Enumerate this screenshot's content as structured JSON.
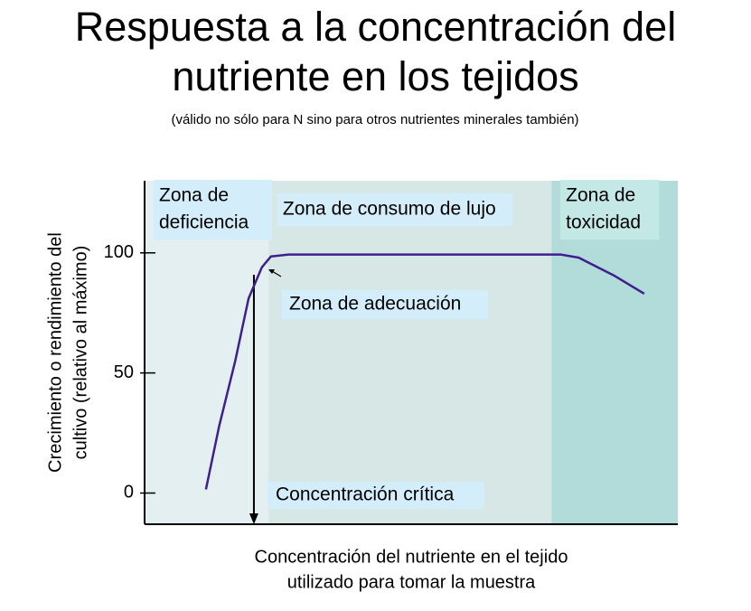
{
  "chart_data": {
    "type": "line",
    "title": "Respuesta a la concentración del nutriente en los tejidos",
    "subtitle": "(válido no sólo para N sino para otros nutrientes minerales también)",
    "y_label": [
      "Crecimiento o rendimiento del",
      "cultivo (relativo al máximo)"
    ],
    "x_label": [
      "Concentración del nutriente en el tejido",
      "utilizado para tomar la muestra"
    ],
    "xlim": [
      0,
      100
    ],
    "ylim": [
      -13,
      130
    ],
    "yticks": [
      0,
      50,
      100
    ],
    "color": "#3f1f8c",
    "x": [
      11.5,
      14,
      17,
      19.5,
      22,
      23.7,
      27,
      78,
      81.4,
      88,
      93.7
    ],
    "values": [
      1.5,
      28,
      55,
      81,
      94,
      98.5,
      99.3,
      99.3,
      98,
      90.6,
      83
    ],
    "zones": [
      {
        "label": [
          "Zona de",
          "deficiencia"
        ],
        "x0": 0,
        "x1": 23.2,
        "color": "#e3eff0"
      },
      {
        "label": [
          "Zona de consumo de lujo"
        ],
        "x0": 23.2,
        "x1": 76.3,
        "color": "#d6e7e6"
      },
      {
        "label": [
          "Zona de",
          "toxicidad"
        ],
        "x0": 76.3,
        "x1": 100,
        "color": "#b2dcda"
      }
    ],
    "adequacy_label": "Zona de adecuación",
    "critical_concentration": {
      "label": "Concentración crítica",
      "x": 20.5
    }
  }
}
